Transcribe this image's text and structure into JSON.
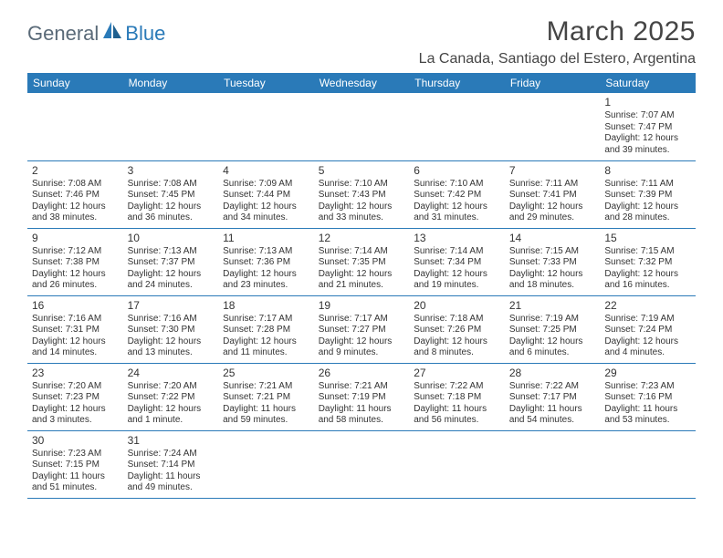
{
  "logo": {
    "general": "General",
    "blue": "Blue"
  },
  "title": "March 2025",
  "location": "La Canada, Santiago del Estero, Argentina",
  "colors": {
    "header_bg": "#2a7ab8",
    "header_text": "#ffffff",
    "border": "#2a7ab8",
    "text": "#333333",
    "title_text": "#454545",
    "logo_gray": "#5a6a78",
    "logo_blue": "#2a7ab8",
    "background": "#ffffff"
  },
  "typography": {
    "title_fontsize": 30,
    "location_fontsize": 16,
    "dayname_fontsize": 12,
    "daynum_fontsize": 12,
    "detail_fontsize": 10,
    "font_family": "Arial"
  },
  "daynames": [
    "Sunday",
    "Monday",
    "Tuesday",
    "Wednesday",
    "Thursday",
    "Friday",
    "Saturday"
  ],
  "weeks": [
    [
      null,
      null,
      null,
      null,
      null,
      null,
      {
        "n": "1",
        "sr": "Sunrise: 7:07 AM",
        "ss": "Sunset: 7:47 PM",
        "dl": "Daylight: 12 hours and 39 minutes."
      }
    ],
    [
      {
        "n": "2",
        "sr": "Sunrise: 7:08 AM",
        "ss": "Sunset: 7:46 PM",
        "dl": "Daylight: 12 hours and 38 minutes."
      },
      {
        "n": "3",
        "sr": "Sunrise: 7:08 AM",
        "ss": "Sunset: 7:45 PM",
        "dl": "Daylight: 12 hours and 36 minutes."
      },
      {
        "n": "4",
        "sr": "Sunrise: 7:09 AM",
        "ss": "Sunset: 7:44 PM",
        "dl": "Daylight: 12 hours and 34 minutes."
      },
      {
        "n": "5",
        "sr": "Sunrise: 7:10 AM",
        "ss": "Sunset: 7:43 PM",
        "dl": "Daylight: 12 hours and 33 minutes."
      },
      {
        "n": "6",
        "sr": "Sunrise: 7:10 AM",
        "ss": "Sunset: 7:42 PM",
        "dl": "Daylight: 12 hours and 31 minutes."
      },
      {
        "n": "7",
        "sr": "Sunrise: 7:11 AM",
        "ss": "Sunset: 7:41 PM",
        "dl": "Daylight: 12 hours and 29 minutes."
      },
      {
        "n": "8",
        "sr": "Sunrise: 7:11 AM",
        "ss": "Sunset: 7:39 PM",
        "dl": "Daylight: 12 hours and 28 minutes."
      }
    ],
    [
      {
        "n": "9",
        "sr": "Sunrise: 7:12 AM",
        "ss": "Sunset: 7:38 PM",
        "dl": "Daylight: 12 hours and 26 minutes."
      },
      {
        "n": "10",
        "sr": "Sunrise: 7:13 AM",
        "ss": "Sunset: 7:37 PM",
        "dl": "Daylight: 12 hours and 24 minutes."
      },
      {
        "n": "11",
        "sr": "Sunrise: 7:13 AM",
        "ss": "Sunset: 7:36 PM",
        "dl": "Daylight: 12 hours and 23 minutes."
      },
      {
        "n": "12",
        "sr": "Sunrise: 7:14 AM",
        "ss": "Sunset: 7:35 PM",
        "dl": "Daylight: 12 hours and 21 minutes."
      },
      {
        "n": "13",
        "sr": "Sunrise: 7:14 AM",
        "ss": "Sunset: 7:34 PM",
        "dl": "Daylight: 12 hours and 19 minutes."
      },
      {
        "n": "14",
        "sr": "Sunrise: 7:15 AM",
        "ss": "Sunset: 7:33 PM",
        "dl": "Daylight: 12 hours and 18 minutes."
      },
      {
        "n": "15",
        "sr": "Sunrise: 7:15 AM",
        "ss": "Sunset: 7:32 PM",
        "dl": "Daylight: 12 hours and 16 minutes."
      }
    ],
    [
      {
        "n": "16",
        "sr": "Sunrise: 7:16 AM",
        "ss": "Sunset: 7:31 PM",
        "dl": "Daylight: 12 hours and 14 minutes."
      },
      {
        "n": "17",
        "sr": "Sunrise: 7:16 AM",
        "ss": "Sunset: 7:30 PM",
        "dl": "Daylight: 12 hours and 13 minutes."
      },
      {
        "n": "18",
        "sr": "Sunrise: 7:17 AM",
        "ss": "Sunset: 7:28 PM",
        "dl": "Daylight: 12 hours and 11 minutes."
      },
      {
        "n": "19",
        "sr": "Sunrise: 7:17 AM",
        "ss": "Sunset: 7:27 PM",
        "dl": "Daylight: 12 hours and 9 minutes."
      },
      {
        "n": "20",
        "sr": "Sunrise: 7:18 AM",
        "ss": "Sunset: 7:26 PM",
        "dl": "Daylight: 12 hours and 8 minutes."
      },
      {
        "n": "21",
        "sr": "Sunrise: 7:19 AM",
        "ss": "Sunset: 7:25 PM",
        "dl": "Daylight: 12 hours and 6 minutes."
      },
      {
        "n": "22",
        "sr": "Sunrise: 7:19 AM",
        "ss": "Sunset: 7:24 PM",
        "dl": "Daylight: 12 hours and 4 minutes."
      }
    ],
    [
      {
        "n": "23",
        "sr": "Sunrise: 7:20 AM",
        "ss": "Sunset: 7:23 PM",
        "dl": "Daylight: 12 hours and 3 minutes."
      },
      {
        "n": "24",
        "sr": "Sunrise: 7:20 AM",
        "ss": "Sunset: 7:22 PM",
        "dl": "Daylight: 12 hours and 1 minute."
      },
      {
        "n": "25",
        "sr": "Sunrise: 7:21 AM",
        "ss": "Sunset: 7:21 PM",
        "dl": "Daylight: 11 hours and 59 minutes."
      },
      {
        "n": "26",
        "sr": "Sunrise: 7:21 AM",
        "ss": "Sunset: 7:19 PM",
        "dl": "Daylight: 11 hours and 58 minutes."
      },
      {
        "n": "27",
        "sr": "Sunrise: 7:22 AM",
        "ss": "Sunset: 7:18 PM",
        "dl": "Daylight: 11 hours and 56 minutes."
      },
      {
        "n": "28",
        "sr": "Sunrise: 7:22 AM",
        "ss": "Sunset: 7:17 PM",
        "dl": "Daylight: 11 hours and 54 minutes."
      },
      {
        "n": "29",
        "sr": "Sunrise: 7:23 AM",
        "ss": "Sunset: 7:16 PM",
        "dl": "Daylight: 11 hours and 53 minutes."
      }
    ],
    [
      {
        "n": "30",
        "sr": "Sunrise: 7:23 AM",
        "ss": "Sunset: 7:15 PM",
        "dl": "Daylight: 11 hours and 51 minutes."
      },
      {
        "n": "31",
        "sr": "Sunrise: 7:24 AM",
        "ss": "Sunset: 7:14 PM",
        "dl": "Daylight: 11 hours and 49 minutes."
      },
      null,
      null,
      null,
      null,
      null
    ]
  ]
}
